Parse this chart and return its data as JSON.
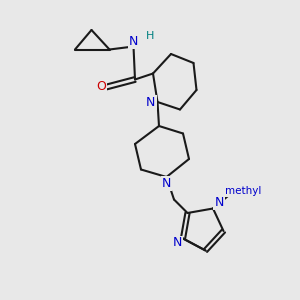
{
  "background_color": "#e8e8e8",
  "bond_color": "#1a1a1a",
  "N_color": "#0000cc",
  "O_color": "#cc0000",
  "H_color": "#008080",
  "line_width": 1.5,
  "figsize": [
    3.0,
    3.0
  ],
  "dpi": 100,
  "xlim": [
    0,
    10
  ],
  "ylim": [
    0,
    10
  ]
}
